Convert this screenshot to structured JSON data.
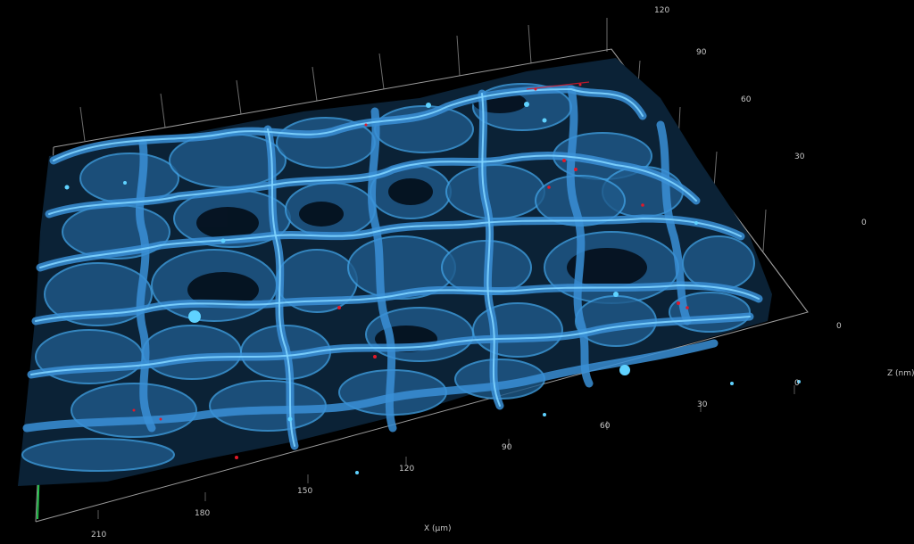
{
  "axes": {
    "x": {
      "title": "X (µm)",
      "ticks": [
        "210",
        "180",
        "150",
        "120",
        "90",
        "60",
        "30",
        "0"
      ]
    },
    "y": {
      "ticks": [
        "120",
        "90",
        "60",
        "30",
        "0",
        "0"
      ]
    },
    "z": {
      "title": "Z (nm)"
    }
  },
  "colors": {
    "background": "#000000",
    "cell_walls": "#3a8fd6",
    "wall_highlight": "#7fd4ff",
    "red_signal": "#e0192a",
    "bounding_box": "#cfcfcf",
    "axis_green": "#22c04a"
  }
}
